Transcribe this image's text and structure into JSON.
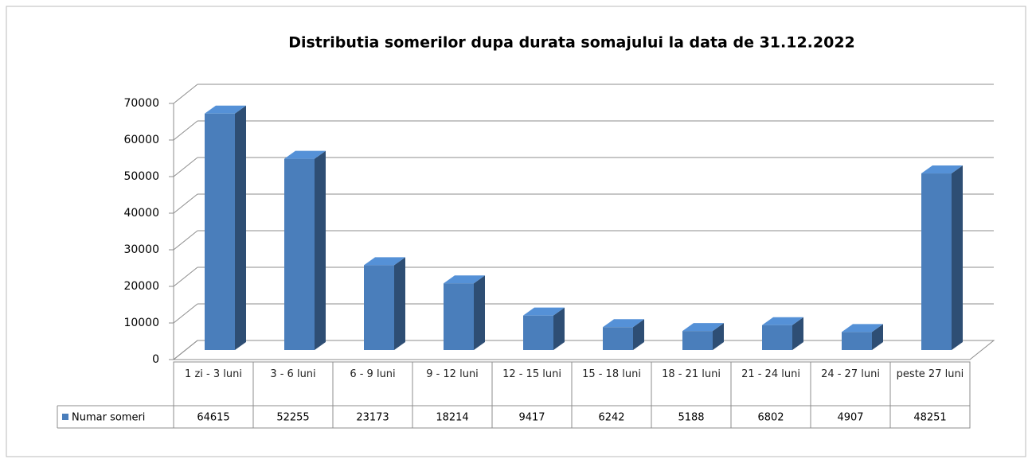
{
  "chart_data": {
    "type": "bar3d",
    "title": "Distributia somerilor dupa durata somajului la data de 31.12.2022",
    "categories": [
      "1 zi - 3 luni",
      "3 - 6 luni",
      "6 - 9 luni",
      "9 - 12 luni",
      "12 - 15 luni",
      "15 - 18 luni",
      "18 - 21 luni",
      "21 - 24 luni",
      "24 - 27 luni",
      "peste 27 luni"
    ],
    "series": [
      {
        "name": "Numar someri",
        "color": "#4a7ebb",
        "values": [
          64615,
          52255,
          23173,
          18214,
          9417,
          6242,
          5188,
          6802,
          4907,
          48251
        ]
      }
    ],
    "ylim": [
      0,
      70000
    ],
    "yticks": [
      0,
      10000,
      20000,
      30000,
      40000,
      50000,
      60000,
      70000
    ],
    "grid": true,
    "data_table": true
  }
}
